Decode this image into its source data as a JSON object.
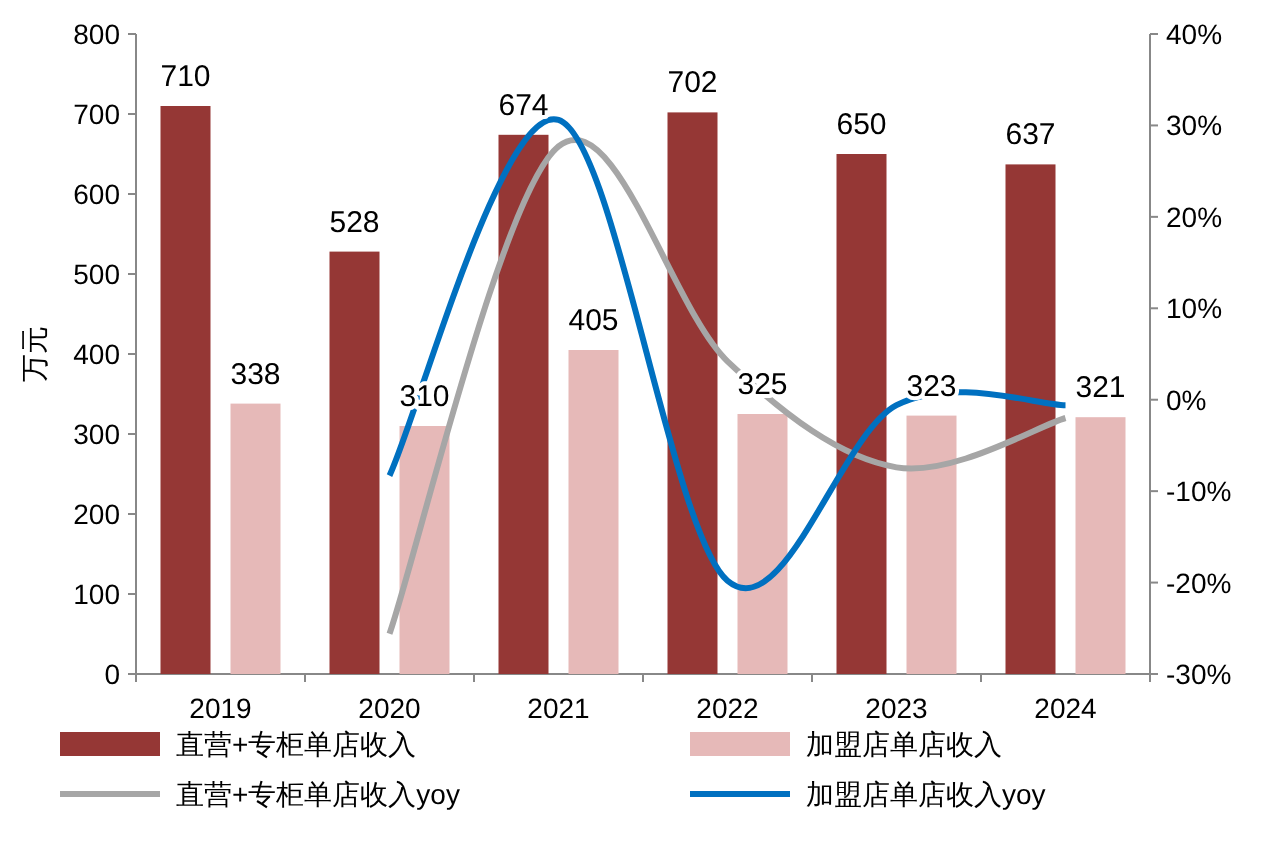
{
  "chart_data": {
    "type": "bar",
    "categories": [
      "2019",
      "2020",
      "2021",
      "2022",
      "2023",
      "2024"
    ],
    "ylabel": "万元",
    "ylim": [
      0,
      800
    ],
    "yticks": [
      0,
      100,
      200,
      300,
      400,
      500,
      600,
      700,
      800
    ],
    "y2lim": [
      -30,
      40
    ],
    "y2ticks": [
      {
        "value": -30,
        "label": "-30%"
      },
      {
        "value": -20,
        "label": "-20%"
      },
      {
        "value": -10,
        "label": "-10%"
      },
      {
        "value": 0,
        "label": "0%"
      },
      {
        "value": 10,
        "label": "10%"
      },
      {
        "value": 20,
        "label": "20%"
      },
      {
        "value": 30,
        "label": "30%"
      },
      {
        "value": 40,
        "label": "40%"
      }
    ],
    "legend": "bottom",
    "grid": false,
    "series": [
      {
        "name": "直营+专柜单店收入",
        "color": "#953735",
        "values": [
          710,
          528,
          674,
          702,
          650,
          637
        ],
        "value_labels": [
          "710",
          "528",
          "674",
          "702",
          "650",
          "637"
        ]
      },
      {
        "name": "加盟店单店收入",
        "color": "#e6b9b8",
        "values": [
          338,
          310,
          405,
          325,
          323,
          321
        ],
        "value_labels": [
          "338",
          "310",
          "405",
          "325",
          "323",
          "321"
        ]
      },
      {
        "name": "直营+专柜单店收入yoy",
        "type": "line",
        "axis": "y2",
        "color": "#a6a6a6",
        "values": [
          null,
          -25.6,
          27.7,
          4.2,
          -7.4,
          -2.0
        ]
      },
      {
        "name": "加盟店单店收入yoy",
        "type": "line",
        "axis": "y2",
        "color": "#0070c0",
        "values": [
          null,
          -8.3,
          30.6,
          -19.8,
          -0.6,
          -0.6
        ]
      }
    ]
  }
}
